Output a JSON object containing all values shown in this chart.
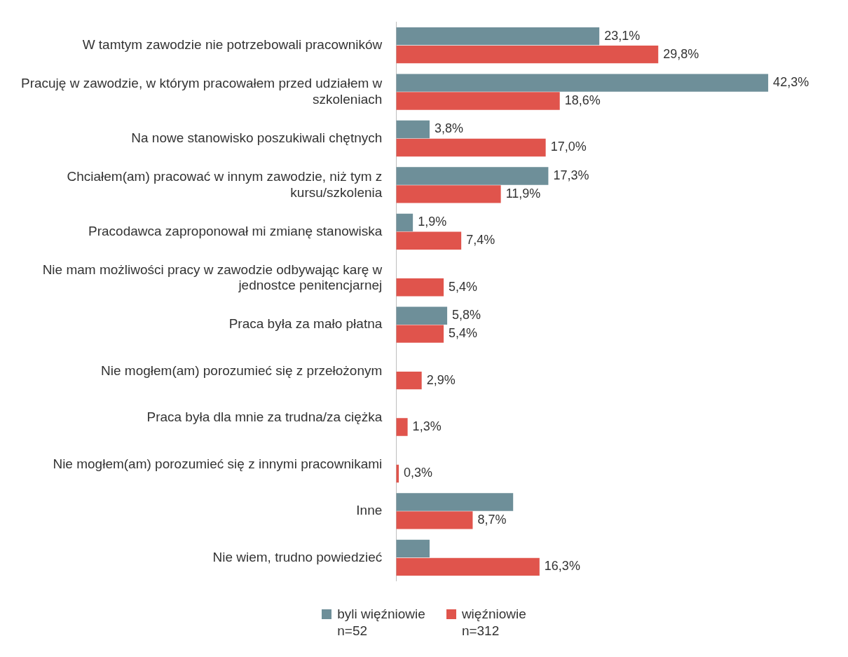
{
  "chart_data": {
    "type": "bar",
    "orientation": "horizontal",
    "legend": "bottom",
    "grid": false,
    "tick_labels": "y",
    "categories": [
      "W tamtym zawodzie nie potrzebowali pracowników",
      "Pracuję w zawodzie, w którym pracowałem przed udziałem w szkoleniach",
      "Na nowe stanowisko poszukiwali chętnych",
      "Chciałem(am) pracować w innym zawodzie, niż tym z kursu/szkolenia",
      "Pracodawca zaproponował mi zmianę stanowiska",
      "Nie mam możliwości pracy w zawodzie odbywając karę w jednostce penitencjarnej",
      "Praca była za mało płatna",
      "Nie mogłem(am) porozumieć się z przełożonym",
      "Praca była dla mnie za trudna/za ciężka",
      "Nie mogłem(am) porozumieć się z innymi pracownikami",
      "Inne",
      "Nie wiem, trudno powiedzieć"
    ],
    "series": [
      {
        "name": "byli więźniowie\nn=52",
        "color": "#6e8f99",
        "values": [
          23.1,
          42.3,
          3.8,
          17.3,
          1.9,
          null,
          5.8,
          null,
          null,
          null,
          13.3,
          3.8
        ],
        "value_labels": [
          "23,1%",
          "42,3%",
          "3,8%",
          "17,3%",
          "1,9%",
          null,
          "5,8%",
          null,
          null,
          null,
          null,
          null
        ]
      },
      {
        "name": "więźniowie\nn=312",
        "color": "#e0544c",
        "values": [
          29.8,
          18.6,
          17.0,
          11.9,
          7.4,
          5.4,
          5.4,
          2.9,
          1.3,
          0.3,
          8.7,
          16.3
        ],
        "value_labels": [
          "29,8%",
          "18,6%",
          "17,0%",
          "11,9%",
          "7,4%",
          "5,4%",
          "5,4%",
          "2,9%",
          "1,3%",
          "0,3%",
          "8,7%",
          "16,3%"
        ]
      }
    ]
  }
}
